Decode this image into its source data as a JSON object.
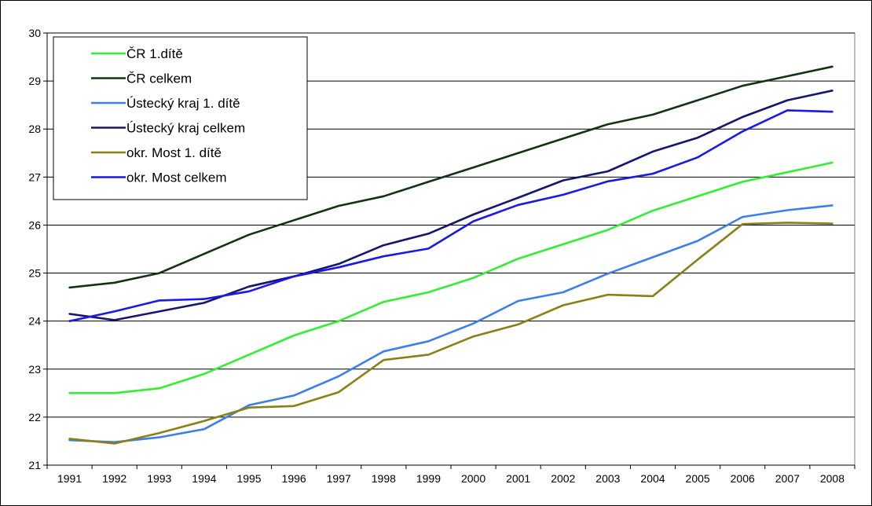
{
  "chart_data": {
    "type": "line",
    "title": "",
    "xlabel": "",
    "ylabel": "",
    "x": [
      "1991",
      "1992",
      "1993",
      "1994",
      "1995",
      "1996",
      "1997",
      "1998",
      "1999",
      "2000",
      "2001",
      "2002",
      "2003",
      "2004",
      "2005",
      "2006",
      "2007",
      "2008"
    ],
    "ylim": [
      21,
      30
    ],
    "yticks": [
      21,
      22,
      23,
      24,
      25,
      26,
      27,
      28,
      29,
      30
    ],
    "grid": true,
    "legend_position": "top-left",
    "series": [
      {
        "name": "ČR 1.dítě",
        "color": "#33ee33",
        "values": [
          22.5,
          22.5,
          22.6,
          22.9,
          23.3,
          23.7,
          24.0,
          24.4,
          24.6,
          24.9,
          25.3,
          25.6,
          25.9,
          26.3,
          26.6,
          26.9,
          27.1,
          27.3
        ]
      },
      {
        "name": "ČR celkem",
        "color": "#143214",
        "values": [
          24.7,
          24.8,
          25.0,
          25.4,
          25.8,
          26.1,
          26.4,
          26.6,
          26.9,
          27.2,
          27.5,
          27.8,
          28.1,
          28.3,
          28.6,
          28.9,
          29.1,
          29.3
        ]
      },
      {
        "name": "Ústecký kraj 1. dítě",
        "color": "#3d7fe8",
        "values": [
          21.52,
          21.48,
          21.58,
          21.75,
          22.25,
          22.45,
          22.85,
          23.37,
          23.58,
          23.95,
          24.42,
          24.6,
          24.99,
          25.33,
          25.67,
          26.17,
          26.31,
          26.41
        ]
      },
      {
        "name": "Ústecký kraj celkem",
        "color": "#16166e",
        "values": [
          24.15,
          24.02,
          24.2,
          24.38,
          24.72,
          24.93,
          25.19,
          25.58,
          25.82,
          26.22,
          26.57,
          26.93,
          27.12,
          27.53,
          27.82,
          28.25,
          28.6,
          28.8
        ]
      },
      {
        "name": "okr. Most 1. dítě",
        "color": "#8a8015",
        "values": [
          21.55,
          21.45,
          21.67,
          21.92,
          22.2,
          22.23,
          22.52,
          23.19,
          23.3,
          23.68,
          23.93,
          24.33,
          24.55,
          24.52,
          25.28,
          26.02,
          26.05,
          26.03
        ]
      },
      {
        "name": "okr. Most celkem",
        "color": "#1a1ae6",
        "values": [
          24.0,
          24.2,
          24.43,
          24.46,
          24.62,
          24.93,
          25.12,
          25.35,
          25.51,
          26.08,
          26.42,
          26.63,
          26.91,
          27.07,
          27.41,
          27.95,
          28.39,
          28.36
        ]
      }
    ]
  }
}
